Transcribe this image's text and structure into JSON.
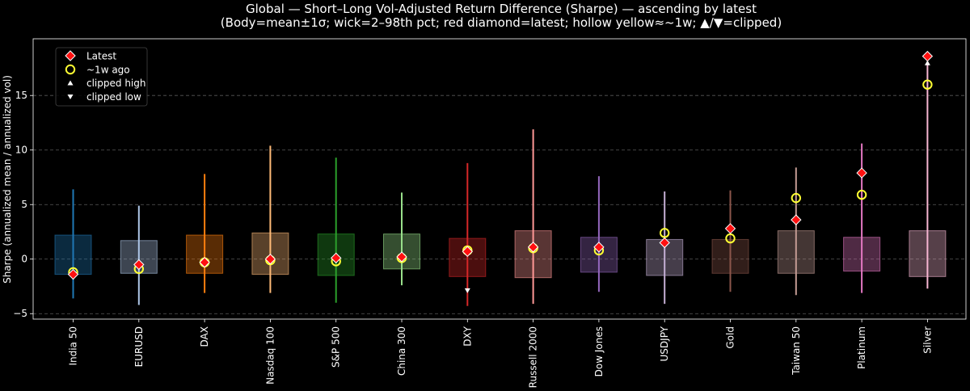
{
  "chart_data": {
    "type": "box",
    "title": "Global — Short–Long Vol-Adjusted Return Difference (Sharpe) — ascending by latest",
    "subtitle": "(Body=mean±1σ; wick=2–98th pct; red diamond=latest; hollow yellow≈~1w; ▲/▼=clipped)",
    "xlabel": "",
    "ylabel": "Sharpe (annualized mean / annualized vol)",
    "ylim": [
      -5.5,
      20.2
    ],
    "yticks": [
      -5,
      0,
      5,
      10,
      15
    ],
    "grid": "horizontal-dashed",
    "legend_position": "top-left",
    "legend": [
      {
        "label": "Latest",
        "marker": "red-diamond"
      },
      {
        "label": "~1w ago",
        "marker": "hollow-yellow-circle"
      },
      {
        "label": "clipped high",
        "marker": "white-up-triangle"
      },
      {
        "label": "clipped low",
        "marker": "white-down-triangle"
      }
    ],
    "categories": [
      "India 50",
      "EURUSD",
      "DAX",
      "Nasdaq 100",
      "S&P 500",
      "China 300",
      "DXY",
      "Russell 2000",
      "Dow Jones",
      "USDJPY",
      "Gold",
      "Taiwan 50",
      "Platinum",
      "Silver"
    ],
    "colors": [
      "#1f77b4",
      "#aec7e8",
      "#ff7f0e",
      "#ffbb78",
      "#2ca02c",
      "#98df8a",
      "#d62728",
      "#ff9896",
      "#9467bd",
      "#c5b0d5",
      "#8c564b",
      "#c49c94",
      "#e377c2",
      "#f7b6d2"
    ],
    "series": [
      {
        "name": "India 50",
        "body_low": -1.4,
        "body_high": 2.2,
        "wick_low": -3.6,
        "wick_high": 6.4,
        "latest": -1.4,
        "week_ago": -1.2,
        "clipped_high": false,
        "clipped_low": false
      },
      {
        "name": "EURUSD",
        "body_low": -1.3,
        "body_high": 1.7,
        "wick_low": -4.2,
        "wick_high": 4.9,
        "latest": -0.5,
        "week_ago": -0.9,
        "clipped_high": false,
        "clipped_low": false
      },
      {
        "name": "DAX",
        "body_low": -1.3,
        "body_high": 2.2,
        "wick_low": -3.1,
        "wick_high": 7.8,
        "latest": -0.3,
        "week_ago": -0.3,
        "clipped_high": false,
        "clipped_low": false
      },
      {
        "name": "Nasdaq 100",
        "body_low": -1.4,
        "body_high": 2.4,
        "wick_low": -3.1,
        "wick_high": 10.4,
        "latest": 0.0,
        "week_ago": -0.1,
        "clipped_high": false,
        "clipped_low": false
      },
      {
        "name": "S&P 500",
        "body_low": -1.5,
        "body_high": 2.3,
        "wick_low": -4.0,
        "wick_high": 9.3,
        "latest": 0.1,
        "week_ago": -0.2,
        "clipped_high": false,
        "clipped_low": false
      },
      {
        "name": "China 300",
        "body_low": -0.9,
        "body_high": 2.3,
        "wick_low": -2.4,
        "wick_high": 6.1,
        "latest": 0.2,
        "week_ago": 0.1,
        "clipped_high": false,
        "clipped_low": false
      },
      {
        "name": "DXY",
        "body_low": -1.6,
        "body_high": 1.9,
        "wick_low": -4.3,
        "wick_high": 8.8,
        "latest": 0.7,
        "week_ago": 0.8,
        "clipped_high": false,
        "clipped_low": true
      },
      {
        "name": "Russell 2000",
        "body_low": -1.7,
        "body_high": 2.6,
        "wick_low": -4.1,
        "wick_high": 11.9,
        "latest": 1.1,
        "week_ago": 1.0,
        "clipped_high": false,
        "clipped_low": false
      },
      {
        "name": "Dow Jones",
        "body_low": -1.2,
        "body_high": 2.0,
        "wick_low": -3.0,
        "wick_high": 7.6,
        "latest": 1.1,
        "week_ago": 0.8,
        "clipped_high": false,
        "clipped_low": false
      },
      {
        "name": "USDJPY",
        "body_low": -1.5,
        "body_high": 1.8,
        "wick_low": -4.1,
        "wick_high": 6.2,
        "latest": 1.5,
        "week_ago": 2.4,
        "clipped_high": false,
        "clipped_low": false
      },
      {
        "name": "Gold",
        "body_low": -1.3,
        "body_high": 1.8,
        "wick_low": -3.0,
        "wick_high": 6.3,
        "latest": 2.8,
        "week_ago": 1.9,
        "clipped_high": false,
        "clipped_low": false
      },
      {
        "name": "Taiwan 50",
        "body_low": -1.3,
        "body_high": 2.6,
        "wick_low": -3.3,
        "wick_high": 8.4,
        "latest": 3.6,
        "week_ago": 5.6,
        "clipped_high": false,
        "clipped_low": false
      },
      {
        "name": "Platinum",
        "body_low": -1.1,
        "body_high": 2.0,
        "wick_low": -3.1,
        "wick_high": 10.6,
        "latest": 7.9,
        "week_ago": 5.9,
        "clipped_high": false,
        "clipped_low": false
      },
      {
        "name": "Silver",
        "body_low": -1.6,
        "body_high": 2.6,
        "wick_low": -2.7,
        "wick_high": 18.0,
        "latest": 18.6,
        "week_ago": 16.0,
        "clipped_high": true,
        "clipped_low": false
      }
    ]
  }
}
